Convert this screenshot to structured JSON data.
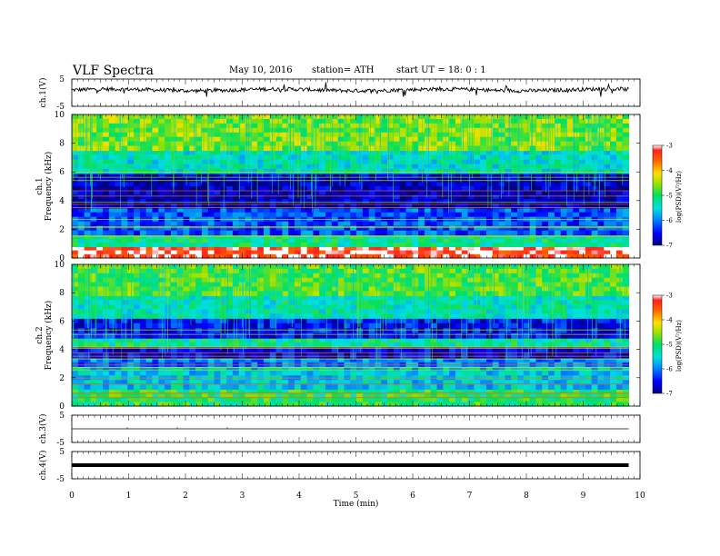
{
  "header": {
    "title": "VLF  Spectra",
    "date": "May 10, 2016",
    "station": "station= ATH",
    "start": "start  UT  =    18: 0  : 1"
  },
  "chart_data": [
    {
      "type": "line",
      "panel": "ch.1 waveform",
      "ylabel": "ch.1(V)",
      "ylim": [
        -5,
        5
      ],
      "y_ticks": [
        "5",
        "-5"
      ],
      "x_range_min": [
        0,
        9.8
      ],
      "signal": "noisy trace centered near 1 V with spikes"
    },
    {
      "type": "heatmap",
      "panel": "ch.1 spectrogram",
      "ylabel": "ch.1\nFrequency  (kHz)",
      "ylim": [
        0,
        10
      ],
      "y_ticks": [
        "0",
        "2",
        "4",
        "6",
        "8",
        "10"
      ],
      "colorbar": {
        "label": "log(PSD)(V²/Hz)",
        "range": [
          -7,
          -3
        ],
        "ticks": [
          "-3",
          "-4",
          "-5",
          "-6",
          "-7"
        ]
      },
      "bands_khz": [
        {
          "from": 0,
          "to": 0.8,
          "level": -3.2
        },
        {
          "from": 0.8,
          "to": 1.6,
          "level": -5.2
        },
        {
          "from": 1.6,
          "to": 3.5,
          "level": -6.2
        },
        {
          "from": 3.5,
          "to": 5.9,
          "level": -6.8
        },
        {
          "from": 5.9,
          "to": 7.5,
          "level": -5.4
        },
        {
          "from": 7.5,
          "to": 10,
          "level": -4.6
        }
      ]
    },
    {
      "type": "heatmap",
      "panel": "ch.2 spectrogram",
      "ylabel": "ch.2\nFrequency  (kHz)",
      "ylim": [
        0,
        10
      ],
      "y_ticks": [
        "0",
        "2",
        "4",
        "6",
        "8",
        "10"
      ],
      "colorbar": {
        "label": "log(PSD)(V²/Hz)",
        "range": [
          -7,
          -3
        ],
        "ticks": [
          "-3",
          "-4",
          "-5",
          "-6",
          "-7"
        ]
      },
      "bands_khz": [
        {
          "from": 0,
          "to": 1.2,
          "level": -5.0
        },
        {
          "from": 1.2,
          "to": 2.8,
          "level": -5.6
        },
        {
          "from": 2.8,
          "to": 3.4,
          "level": -6.0
        },
        {
          "from": 3.4,
          "to": 4.2,
          "level": -6.6
        },
        {
          "from": 4.2,
          "to": 4.8,
          "level": -5.2
        },
        {
          "from": 4.8,
          "to": 6.2,
          "level": -6.5
        },
        {
          "from": 6.2,
          "to": 7.8,
          "level": -5.3
        },
        {
          "from": 7.8,
          "to": 10,
          "level": -4.8
        }
      ]
    },
    {
      "type": "line",
      "panel": "ch.3 waveform",
      "ylabel": "ch.3(V)",
      "ylim": [
        -5,
        5
      ],
      "y_ticks": [
        "5",
        "-5"
      ],
      "values": "flat near 0 V"
    },
    {
      "type": "line",
      "panel": "ch.4 waveform",
      "ylabel": "ch.4(V)",
      "ylim": [
        -5,
        5
      ],
      "y_ticks": [
        "5",
        "-5"
      ],
      "values": "thick flat trace near 0 V"
    }
  ],
  "xaxis": {
    "label": "Time  (min)",
    "range": [
      0,
      10
    ],
    "ticks": [
      "0",
      "1",
      "2",
      "3",
      "4",
      "5",
      "6",
      "7",
      "8",
      "9",
      "10"
    ]
  }
}
